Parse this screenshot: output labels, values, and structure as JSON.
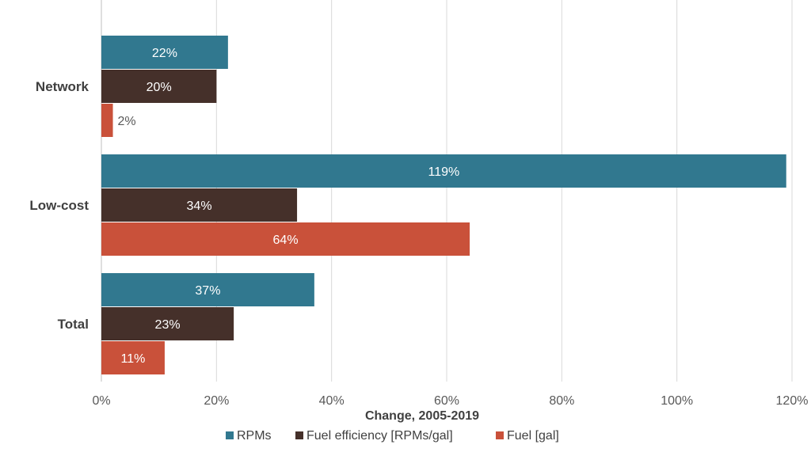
{
  "chart_data": {
    "type": "bar",
    "orientation": "horizontal",
    "categories": [
      "Network",
      "Low-cost",
      "Total"
    ],
    "series": [
      {
        "name": "RPMs",
        "values": [
          22,
          119,
          37
        ],
        "color": "#31788F"
      },
      {
        "name": "Fuel efficiency [RPMs/gal]",
        "values": [
          20,
          34,
          23
        ],
        "color": "#45302A"
      },
      {
        "name": "Fuel [gal]",
        "values": [
          2,
          64,
          11
        ],
        "color": "#C9513A"
      }
    ],
    "data_labels": [
      [
        "22%",
        "119%",
        "37%"
      ],
      [
        "20%",
        "34%",
        "23%"
      ],
      [
        "2%",
        "64%",
        "11%"
      ]
    ],
    "xlabel": "Change, 2005-2019",
    "ylabel": "",
    "title": "",
    "xlim": [
      0,
      120
    ],
    "x_ticks": [
      "0%",
      "20%",
      "40%",
      "60%",
      "80%",
      "100%",
      "120%"
    ],
    "grid": "vertical",
    "legend_position": "bottom"
  }
}
